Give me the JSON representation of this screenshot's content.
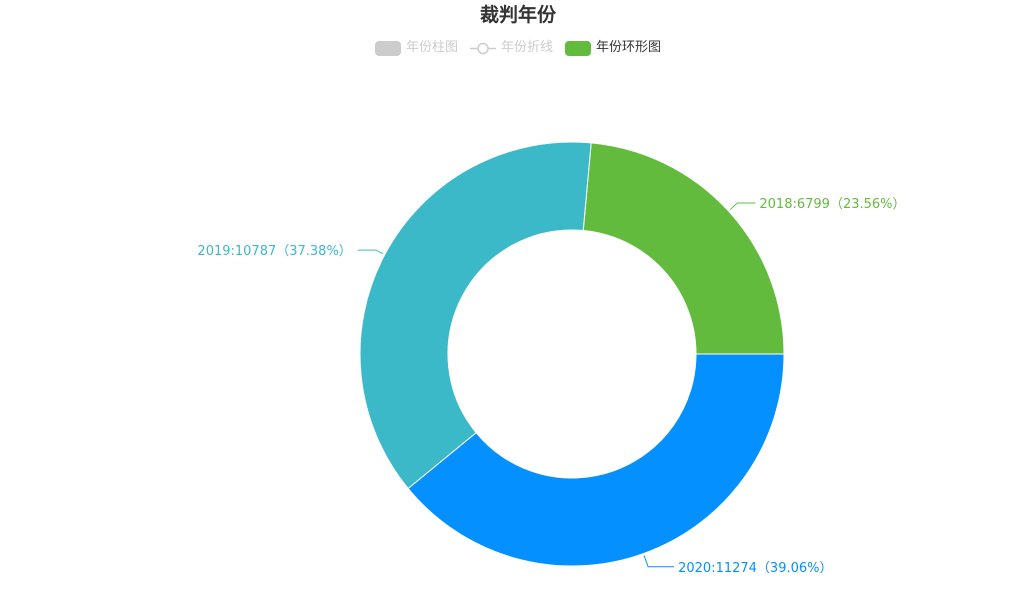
{
  "title": "裁判年份",
  "legend": [
    {
      "label": "年份柱图",
      "icon": "bar-legend-icon",
      "active": false,
      "color": "#cccccc"
    },
    {
      "label": "年份折线",
      "icon": "line-legend-icon",
      "active": false,
      "color": "#cccccc"
    },
    {
      "label": "年份环形图",
      "icon": "donut-legend-icon",
      "active": true,
      "color": "#63bb3d"
    }
  ],
  "chart_data": {
    "type": "pie",
    "title": "裁判年份",
    "donut": true,
    "legend_position": "top-center",
    "slices": [
      {
        "category": "2018",
        "value": 6799,
        "percent": "23.56%",
        "label": "2018:6799（23.56%）",
        "color": "#63bb3d"
      },
      {
        "category": "2020",
        "value": 11274,
        "percent": "39.06%",
        "label": "2020:11274（39.06%）",
        "color": "#0491ff"
      },
      {
        "category": "2019",
        "value": 10787,
        "percent": "37.38%",
        "label": "2019:10787（37.38%）",
        "color": "#3cb9c9"
      }
    ]
  }
}
